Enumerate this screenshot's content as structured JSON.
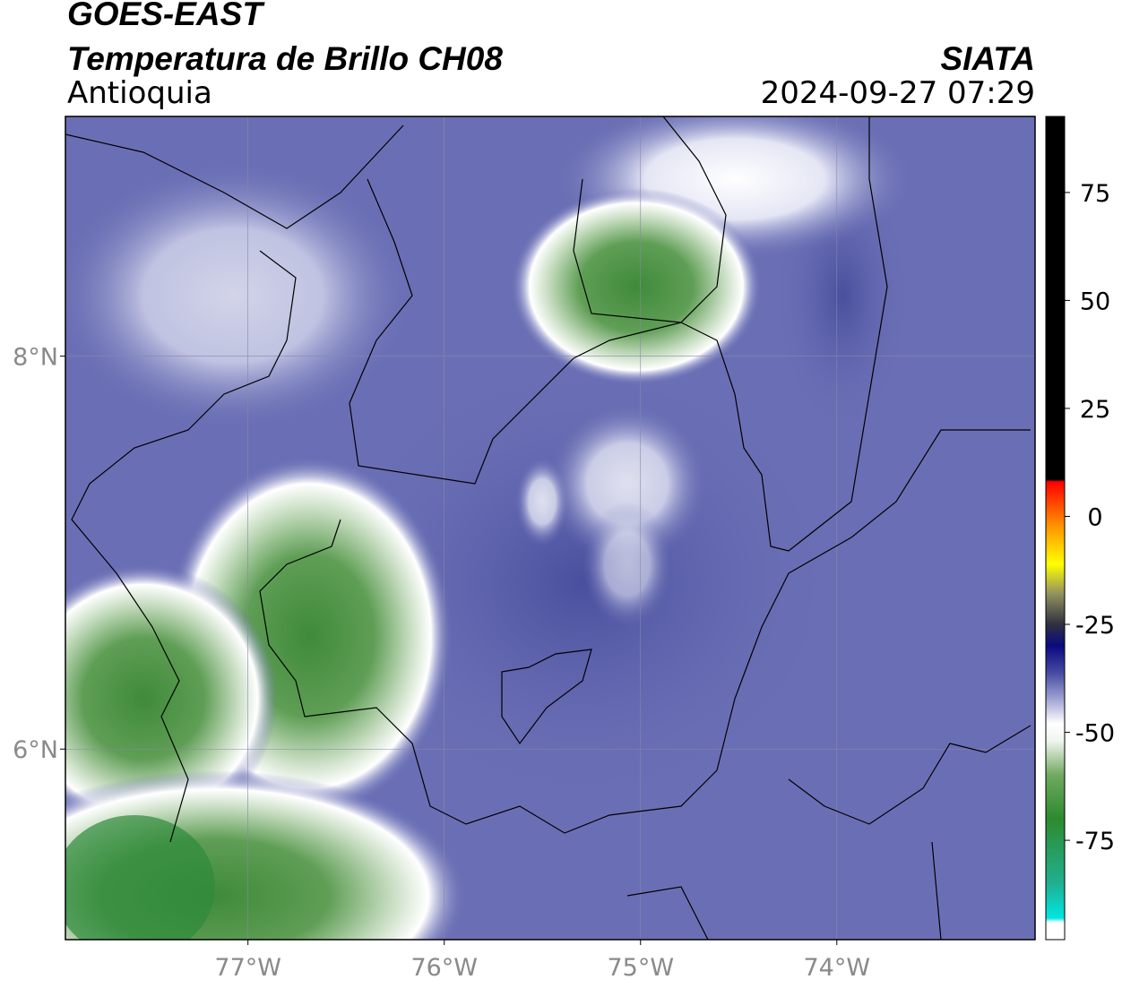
{
  "header": {
    "title": "GOES-EAST",
    "subtitle": "Temperatura de Brillo CH08",
    "region": "Antioquia",
    "agency": "SIATA",
    "datetime": "2024-09-27 07:29"
  },
  "map": {
    "xlim": [
      -77.93,
      -72.99
    ],
    "ylim": [
      5.03,
      9.22
    ],
    "xticks": [
      {
        "value": -77,
        "label": "77°W"
      },
      {
        "value": -76,
        "label": "76°W"
      },
      {
        "value": -75,
        "label": "75°W"
      },
      {
        "value": -74,
        "label": "74°W"
      }
    ],
    "yticks": [
      {
        "value": 6,
        "label": "6°N"
      },
      {
        "value": 8,
        "label": "8°N"
      }
    ],
    "grid": true
  },
  "colorbar": {
    "lim": [
      -98,
      92.6
    ],
    "ticks": [
      75,
      50,
      25,
      0,
      -25,
      -50,
      -75
    ],
    "stops": [
      {
        "value": -98,
        "color": "#ffffff"
      },
      {
        "value": -94,
        "color": "#ffffff"
      },
      {
        "value": -93,
        "color": "#00e6e0"
      },
      {
        "value": -85,
        "color": "#20b090"
      },
      {
        "value": -70,
        "color": "#2e8a2e"
      },
      {
        "value": -60,
        "color": "#6fa860"
      },
      {
        "value": -52,
        "color": "#f0f5ee"
      },
      {
        "value": -48,
        "color": "#ffffff"
      },
      {
        "value": -42,
        "color": "#9a9ed0"
      },
      {
        "value": -36,
        "color": "#4448a0"
      },
      {
        "value": -30,
        "color": "#0a0a80"
      },
      {
        "value": -25,
        "color": "#303040"
      },
      {
        "value": -18,
        "color": "#909060"
      },
      {
        "value": -11,
        "color": "#ffff00"
      },
      {
        "value": -2,
        "color": "#ff9000"
      },
      {
        "value": 8,
        "color": "#ff0000"
      },
      {
        "value": 8.5,
        "color": "#000000"
      },
      {
        "value": 92.6,
        "color": "#000000"
      }
    ]
  }
}
